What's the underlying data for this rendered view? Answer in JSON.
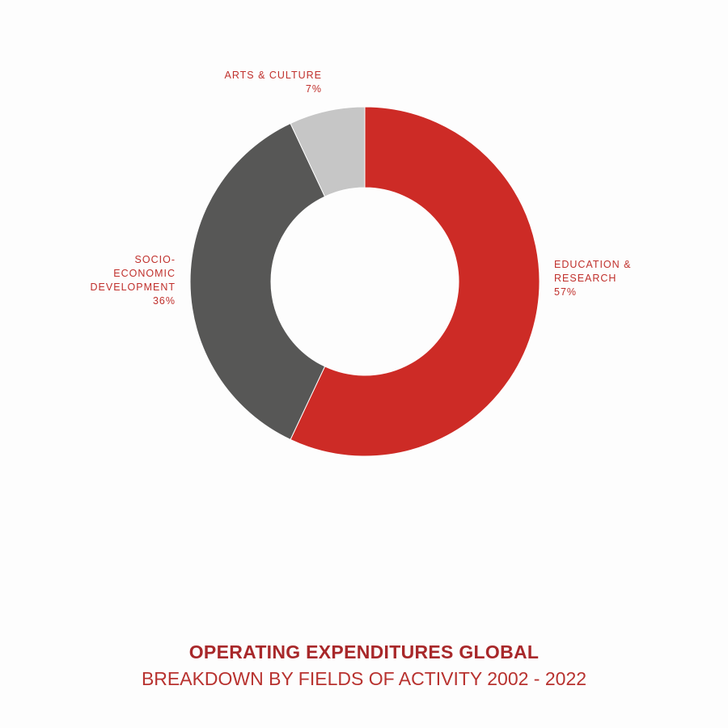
{
  "chart_data": {
    "type": "pie",
    "style": "donut",
    "title": "OPERATING EXPENDITURES GLOBAL",
    "subtitle": "BREAKDOWN BY FIELDS OF ACTIVITY 2002 - 2022",
    "slices": [
      {
        "label_lines": [
          "EDUCATION &",
          "RESEARCH"
        ],
        "value": 57,
        "value_label": "57%",
        "color": "#cd2b26"
      },
      {
        "label_lines": [
          "SOCIO-",
          "ECONOMIC",
          "DEVELOPMENT"
        ],
        "value": 36,
        "value_label": "36%",
        "color": "#575756"
      },
      {
        "label_lines": [
          "ARTS & CULTURE"
        ],
        "value": 7,
        "value_label": "7%",
        "color": "#c6c6c6"
      }
    ],
    "label_color": "#c0302c"
  }
}
